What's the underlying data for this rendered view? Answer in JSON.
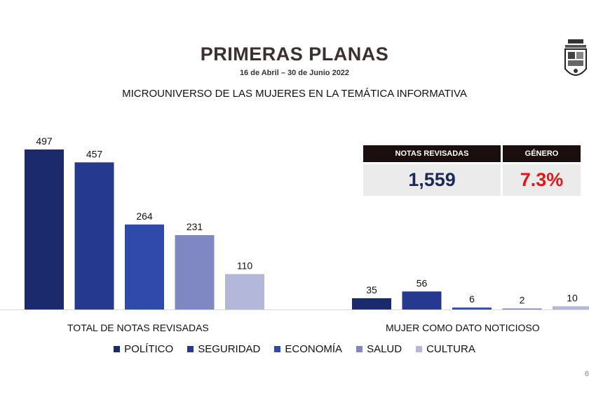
{
  "header": {
    "title": "PRIMERAS PLANAS",
    "subtitle": "16 de Abril – 30 de Junio 2022",
    "heading": "MICROUNIVERSO DE LAS MUJERES EN LA TEMÁTICA INFORMATIVA"
  },
  "summary": {
    "notas_label": "NOTAS REVISADAS",
    "notas_value": "1,559",
    "genero_label": "GÉNERO",
    "genero_value": "7.3%"
  },
  "chart_data": {
    "type": "bar",
    "categories": [
      "TOTAL DE NOTAS REVISADAS",
      "MUJER COMO DATO NOTICIOSO"
    ],
    "series": [
      {
        "name": "POLÍTICO",
        "color": "#1a2a6c",
        "values": [
          497,
          35
        ]
      },
      {
        "name": "SEGURIDAD",
        "color": "#253a8e",
        "values": [
          457,
          56
        ]
      },
      {
        "name": "ECONOMÍA",
        "color": "#2f4aa8",
        "values": [
          264,
          6
        ]
      },
      {
        "name": "SALUD",
        "color": "#8088c4",
        "values": [
          231,
          2
        ]
      },
      {
        "name": "CULTURA",
        "color": "#b3b7da",
        "values": [
          110,
          10
        ]
      }
    ],
    "ylim": [
      0,
      497
    ],
    "grid": false,
    "legend_position": "bottom"
  },
  "footer": {
    "page_number": "6"
  }
}
